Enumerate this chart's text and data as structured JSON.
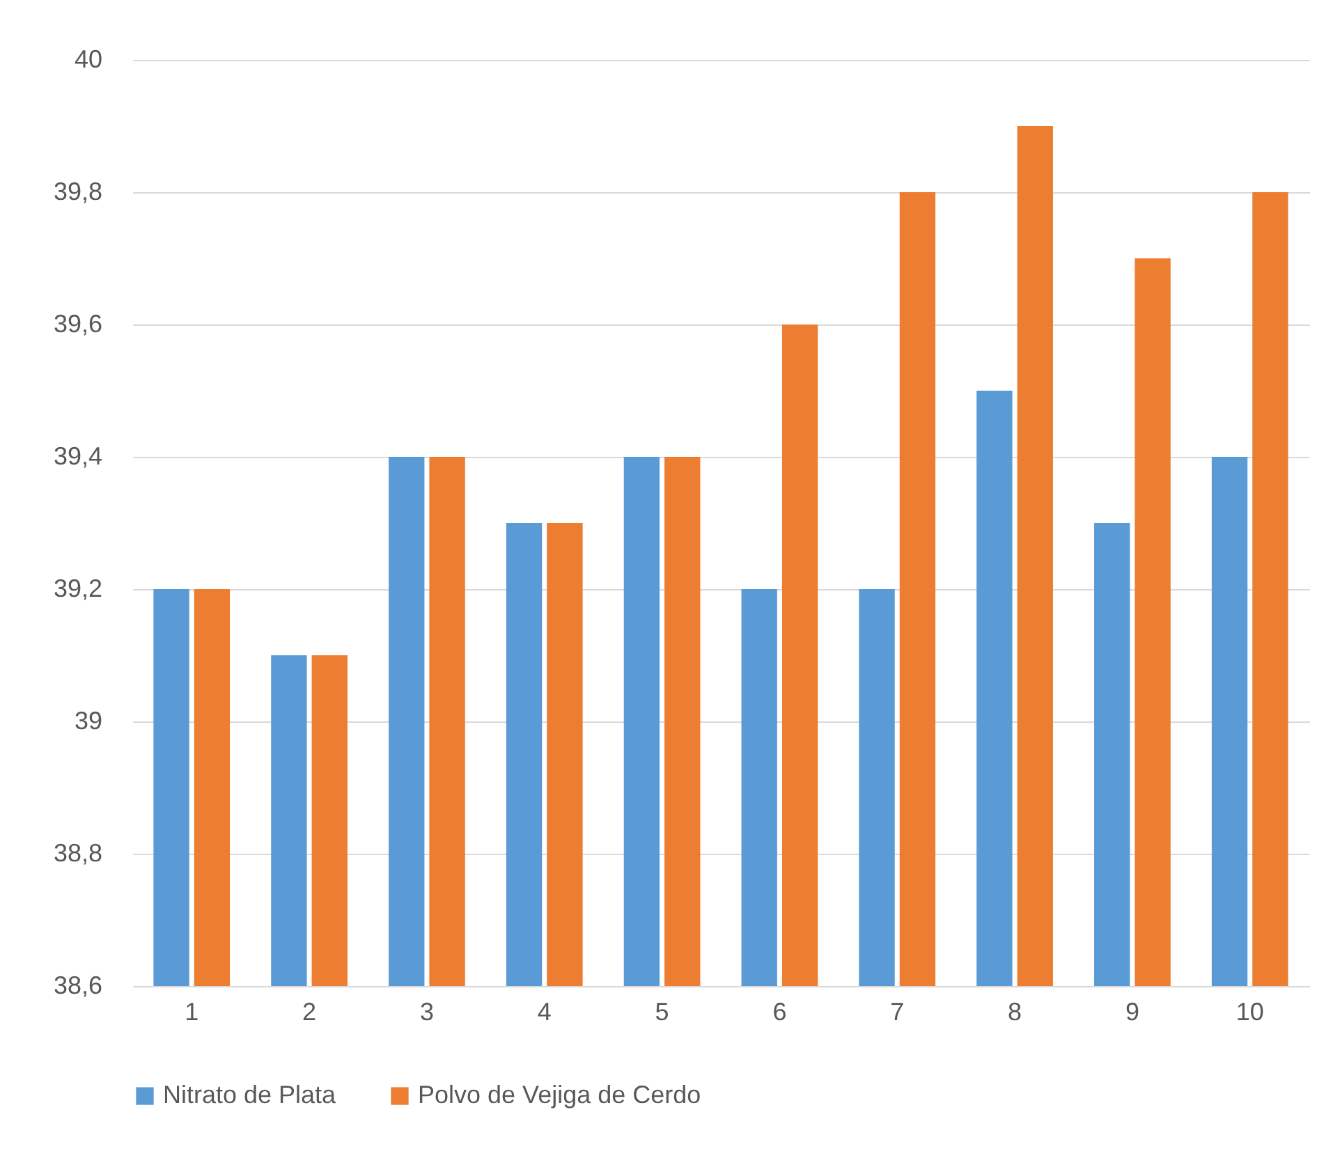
{
  "chart_data": {
    "type": "bar",
    "categories": [
      "1",
      "2",
      "3",
      "4",
      "5",
      "6",
      "7",
      "8",
      "9",
      "10"
    ],
    "series": [
      {
        "name": "Nitrato de Plata",
        "color": "#5b9bd5",
        "values": [
          39.2,
          39.1,
          39.4,
          39.3,
          39.4,
          39.2,
          39.2,
          39.5,
          39.3,
          39.4
        ]
      },
      {
        "name": "Polvo de Vejiga de Cerdo",
        "color": "#ed7d31",
        "values": [
          39.2,
          39.1,
          39.4,
          39.3,
          39.4,
          39.6,
          39.8,
          39.9,
          39.7,
          39.8
        ]
      }
    ],
    "ylim": [
      38.6,
      40
    ],
    "yticks": [
      {
        "value": 38.6,
        "label": "38,6"
      },
      {
        "value": 38.8,
        "label": "38,8"
      },
      39,
      {
        "value": 39.2,
        "label": "39,2"
      },
      {
        "value": 39.4,
        "label": "39,4"
      },
      {
        "value": 39.6,
        "label": "39,6"
      },
      {
        "value": 39.8,
        "label": "39,8"
      },
      40
    ],
    "grid": "y",
    "legend": "bottom"
  }
}
